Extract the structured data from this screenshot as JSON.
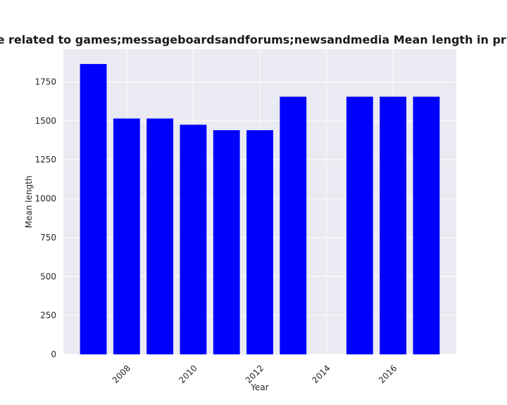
{
  "chart_data": {
    "type": "bar",
    "title": "Mean length of policies by year (Categories are related to games;messageboardsandforums;newsandmedia Mean length in privacy policies)",
    "title_visible": "ories are related to games;messageboardsandforums;newsandmedia Mean length in privacy po",
    "xlabel": "Year",
    "ylabel": "Mean length",
    "x": [
      2007,
      2008,
      2009,
      2010,
      2011,
      2012,
      2013,
      2015,
      2016,
      2017
    ],
    "values": [
      1865,
      1515,
      1515,
      1475,
      1440,
      1440,
      1655,
      1655,
      1655,
      1655
    ],
    "xlim": [
      2006.1,
      2017.9
    ],
    "ylim": [
      0,
      1960
    ],
    "x_ticks": [
      2008,
      2010,
      2012,
      2014,
      2016
    ],
    "y_ticks": [
      0,
      250,
      500,
      750,
      1000,
      1250,
      1500,
      1750
    ],
    "grid": true,
    "legend": "none",
    "colors": {
      "bar": "#0000ff",
      "plot_background": "#eaeaf2",
      "grid": "#ffffff",
      "figure_background": "#ffffff"
    }
  }
}
